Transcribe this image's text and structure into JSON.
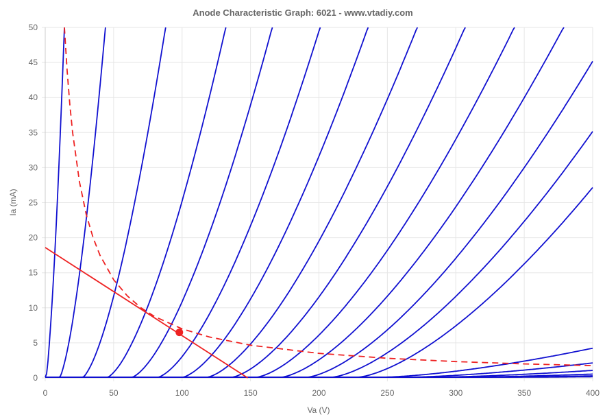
{
  "chart_data": {
    "type": "line",
    "title": "Anode Characteristic Graph: 6021 - www.vtadiy.com",
    "xlabel": "Va (V)",
    "ylabel": "Ia (mA)",
    "xlim": [
      0,
      400
    ],
    "ylim": [
      0,
      50
    ],
    "x_ticks": [
      "0",
      "50",
      "100",
      "150",
      "200",
      "250",
      "300",
      "350",
      "400"
    ],
    "y_ticks": [
      "0",
      "5",
      "10",
      "15",
      "20",
      "25",
      "30",
      "35",
      "40",
      "45",
      "50"
    ],
    "grid": true,
    "legend": "none",
    "colors": {
      "curves": "#1010d0",
      "load_line": "#ee2222",
      "dissipation": "#ee2222",
      "grid": "#e6e6e6"
    },
    "curve_cutoffs": [
      0,
      10,
      27,
      45,
      63,
      82,
      100,
      118,
      136,
      154,
      172,
      191,
      209,
      228,
      246,
      265,
      284,
      303,
      322,
      342
    ],
    "curve_offsets_at_50ma": [
      14,
      44,
      88,
      132,
      166,
      201,
      236,
      272,
      307,
      343,
      379,
      415,
      451,
      487
    ],
    "series": [
      {
        "role": "load-line",
        "x": [
          0,
          148
        ],
        "y": [
          18.6,
          0
        ]
      },
      {
        "role": "operating-point",
        "x": [
          98
        ],
        "y": [
          6.5
        ]
      },
      {
        "role": "max-dissipation",
        "x": [
          14,
          16,
          18,
          20,
          25,
          30,
          35,
          40,
          50,
          60,
          70,
          80,
          100,
          120,
          150,
          200,
          250,
          300,
          350,
          400
        ],
        "y": [
          50,
          43.8,
          38.9,
          35,
          28,
          23.3,
          20,
          17.5,
          14,
          11.7,
          10,
          8.75,
          7,
          5.83,
          4.67,
          3.5,
          2.8,
          2.33,
          2,
          1.75
        ]
      }
    ]
  }
}
